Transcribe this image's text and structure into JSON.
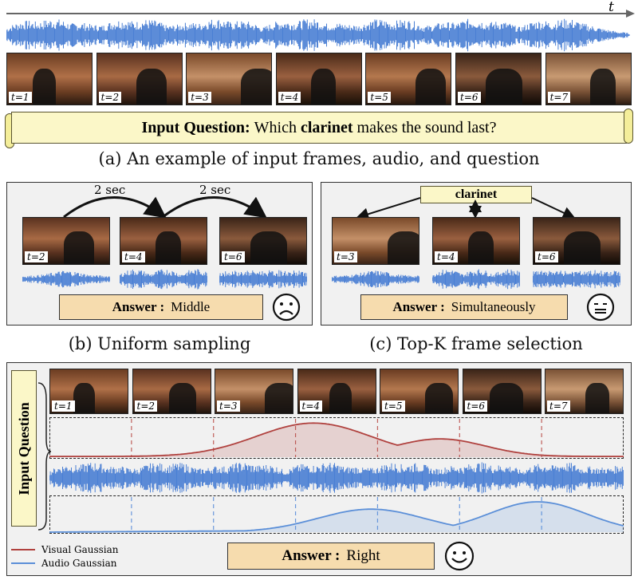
{
  "axis_label": "t",
  "frame_tags": [
    "t=1",
    "t=2",
    "t=3",
    "t=4",
    "t=5",
    "t=6",
    "t=7"
  ],
  "question": {
    "prefix": "Input Question:",
    "text_before": "Which",
    "keyword": "clarinet",
    "text_after": "makes the sound last?"
  },
  "captions": {
    "a": "(a) An example of input frames, audio, and question",
    "b": "(b) Uniform sampling",
    "c": "(c) Top-K frame selection"
  },
  "panel_b": {
    "interval_labels": [
      "2 sec",
      "2 sec"
    ],
    "frame_tags": [
      "t=2",
      "t=4",
      "t=6"
    ],
    "answer_label": "Answer :",
    "answer_value": "Middle",
    "face": "sad-face-icon"
  },
  "panel_c": {
    "keyword": "clarinet",
    "frame_tags": [
      "t=3",
      "t=4",
      "t=6"
    ],
    "answer_label": "Answer :",
    "answer_value": "Simultaneously",
    "face": "neutral-face-icon"
  },
  "panel_d": {
    "side_label": "Input Question",
    "answer_label": "Answer :",
    "answer_value": "Right",
    "face": "happy-face-icon",
    "legend": [
      {
        "label": "Visual Gaussian",
        "color": "#b0413e"
      },
      {
        "label": "Audio Gaussian",
        "color": "#5b8fd8"
      }
    ]
  },
  "colors": {
    "waveform": "#4a7fd4",
    "visual_gaussian": "#b0413e",
    "audio_gaussian": "#5b8fd8",
    "scroll_fill": "#fbf7c8",
    "answer_fill": "#f6dcae",
    "panel_fill": "#f1f1f1"
  }
}
